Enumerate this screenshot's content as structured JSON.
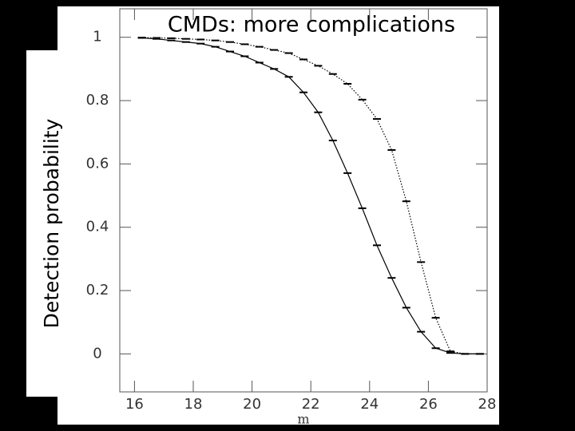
{
  "chart_data": {
    "type": "line",
    "title": "CMDs: more complications",
    "ylabel": "Detection probability",
    "xlabel": "m",
    "x": [
      16.25,
      16.75,
      17.25,
      17.75,
      18.25,
      18.75,
      19.25,
      19.75,
      20.25,
      20.75,
      21.25,
      21.75,
      22.25,
      22.75,
      23.25,
      23.75,
      24.25,
      24.75,
      25.25,
      25.75,
      26.25,
      26.75,
      27.25,
      27.75
    ],
    "series": [
      {
        "color": "#000000",
        "dash": "solid",
        "values": [
          0.998,
          0.995,
          0.99,
          0.985,
          0.98,
          0.97,
          0.955,
          0.94,
          0.92,
          0.9,
          0.875,
          0.826,
          0.763,
          0.674,
          0.571,
          0.46,
          0.343,
          0.24,
          0.146,
          0.07,
          0.018,
          0.003,
          0,
          0
        ]
      },
      {
        "color": "#000000",
        "dash": "dotted",
        "values": [
          0.999,
          0.998,
          0.997,
          0.995,
          0.993,
          0.99,
          0.985,
          0.978,
          0.97,
          0.96,
          0.95,
          0.93,
          0.91,
          0.884,
          0.853,
          0.803,
          0.742,
          0.644,
          0.482,
          0.29,
          0.114,
          0.008,
          0,
          0
        ]
      }
    ],
    "xlim": [
      15.5,
      28
    ],
    "xticks": [
      16,
      18,
      20,
      22,
      24,
      26,
      28
    ],
    "ylim": [
      -0.12,
      1.09
    ],
    "yticks": [
      0,
      0.2,
      0.4,
      0.6,
      0.8,
      1
    ]
  }
}
